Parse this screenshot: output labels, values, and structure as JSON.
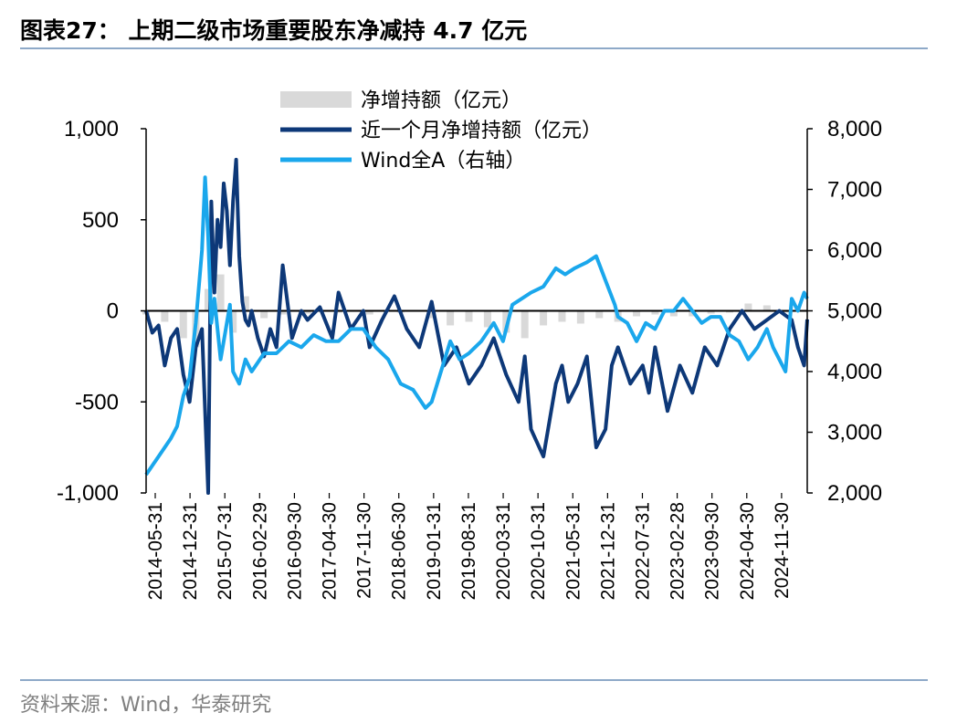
{
  "header": {
    "title": "图表27： 上期二级市场重要股东净减持 4.7 亿元"
  },
  "footer": {
    "source": "资料来源：Wind，华泰研究"
  },
  "colors": {
    "bar": "#d9d9d9",
    "monthly_line": "#0d3878",
    "index_line": "#1aa7ec",
    "rule": "#8ea9c8"
  },
  "chart_data": {
    "type": "line",
    "title": "上期二级市场重要股东净减持 4.7 亿元",
    "legend": [
      {
        "name": "净增持额（亿元）",
        "kind": "bar"
      },
      {
        "name": "近一个月净增持额（亿元）",
        "kind": "line"
      },
      {
        "name": "Wind全A（右轴）",
        "kind": "line"
      }
    ],
    "legend_position": "top-center",
    "y_left": {
      "ylim": [
        -1000,
        1000
      ],
      "ticks": [
        -1000,
        -500,
        0,
        500,
        1000
      ],
      "tick_labels": [
        "-1,000",
        "-500",
        "0",
        "500",
        "1,000"
      ]
    },
    "y_right": {
      "ylim": [
        2000,
        8000
      ],
      "ticks": [
        2000,
        3000,
        4000,
        5000,
        6000,
        7000,
        8000
      ],
      "tick_labels": [
        "2,000",
        "3,000",
        "4,000",
        "5,000",
        "6,000",
        "7,000",
        "8,000"
      ]
    },
    "x_tick_labels": [
      "2014-05-31",
      "2014-12-31",
      "2015-07-31",
      "2016-02-29",
      "2016-09-30",
      "2017-04-30",
      "2017-11-30",
      "2018-06-30",
      "2019-01-31",
      "2019-08-31",
      "2020-03-31",
      "2020-10-31",
      "2021-05-31",
      "2021-12-31",
      "2022-07-31",
      "2023-02-28",
      "2023-09-30",
      "2024-04-30",
      "2024-11-30"
    ],
    "series": [
      {
        "name": "净增持额（亿元）",
        "axis": "left",
        "type": "bar",
        "x": [
          2014.4,
          2014.7,
          2015.0,
          2015.2,
          2015.4,
          2015.6,
          2015.8,
          2016.0,
          2016.3,
          2016.6,
          2017.0,
          2017.5,
          2018.0,
          2018.5,
          2019.0,
          2019.3,
          2019.6,
          2019.9,
          2020.2,
          2020.5,
          2020.8,
          2021.1,
          2021.4,
          2021.7,
          2022.0,
          2022.3,
          2022.6,
          2022.9,
          2023.2,
          2023.5,
          2023.8,
          2024.1,
          2024.4,
          2024.7,
          2025.0
        ],
        "values": [
          -20,
          -60,
          -150,
          -200,
          120,
          200,
          -120,
          80,
          -40,
          -20,
          -15,
          -10,
          -20,
          -10,
          -40,
          -80,
          -60,
          -90,
          -120,
          -150,
          -80,
          -60,
          -70,
          -40,
          -60,
          -30,
          -20,
          -30,
          -30,
          -15,
          -10,
          40,
          30,
          -10,
          -5
        ]
      },
      {
        "name": "近一个月净增持额（亿元）",
        "axis": "left",
        "type": "line",
        "x": [
          2014.4,
          2014.5,
          2014.6,
          2014.7,
          2014.8,
          2014.9,
          2015.0,
          2015.1,
          2015.2,
          2015.3,
          2015.4,
          2015.45,
          2015.5,
          2015.55,
          2015.6,
          2015.65,
          2015.7,
          2015.75,
          2015.8,
          2015.85,
          2015.9,
          2015.95,
          2016.0,
          2016.05,
          2016.1,
          2016.2,
          2016.3,
          2016.4,
          2016.5,
          2016.6,
          2016.75,
          2016.9,
          2017.0,
          2017.2,
          2017.4,
          2017.5,
          2017.7,
          2017.9,
          2018.0,
          2018.2,
          2018.4,
          2018.6,
          2018.8,
          2019.0,
          2019.2,
          2019.4,
          2019.6,
          2019.8,
          2020.0,
          2020.2,
          2020.4,
          2020.5,
          2020.6,
          2020.8,
          2020.9,
          2021.0,
          2021.1,
          2021.2,
          2021.35,
          2021.5,
          2021.65,
          2021.8,
          2021.9,
          2022.0,
          2022.2,
          2022.4,
          2022.5,
          2022.6,
          2022.8,
          2023.0,
          2023.2,
          2023.4,
          2023.6,
          2023.8,
          2024.0,
          2024.2,
          2024.4,
          2024.6,
          2024.8,
          2024.9,
          2025.0,
          2025.05
        ],
        "values": [
          0,
          -120,
          -80,
          -300,
          -150,
          -100,
          -350,
          -500,
          -200,
          -100,
          -1000,
          600,
          100,
          500,
          350,
          700,
          550,
          250,
          600,
          830,
          300,
          50,
          -50,
          -80,
          0,
          -150,
          -250,
          -100,
          -200,
          250,
          -150,
          0,
          -50,
          20,
          -150,
          100,
          -100,
          0,
          -200,
          -50,
          80,
          -100,
          -200,
          50,
          -300,
          -200,
          -400,
          -300,
          -150,
          -350,
          -500,
          -250,
          -650,
          -800,
          -600,
          -400,
          -300,
          -500,
          -400,
          -250,
          -750,
          -650,
          -300,
          -200,
          -400,
          -300,
          -450,
          -200,
          -550,
          -300,
          -450,
          -200,
          -300,
          -100,
          0,
          -100,
          -50,
          0,
          -50,
          -200,
          -300,
          -47
        ]
      },
      {
        "name": "Wind全A（右轴）",
        "axis": "right",
        "type": "line",
        "x": [
          2014.4,
          2014.6,
          2014.8,
          2014.9,
          2015.0,
          2015.1,
          2015.2,
          2015.3,
          2015.35,
          2015.4,
          2015.45,
          2015.5,
          2015.6,
          2015.7,
          2015.75,
          2015.8,
          2015.9,
          2016.0,
          2016.1,
          2016.3,
          2016.5,
          2016.7,
          2016.9,
          2017.1,
          2017.3,
          2017.5,
          2017.7,
          2017.9,
          2018.1,
          2018.3,
          2018.5,
          2018.7,
          2018.9,
          2019.0,
          2019.15,
          2019.3,
          2019.45,
          2019.6,
          2019.8,
          2020.0,
          2020.15,
          2020.3,
          2020.45,
          2020.6,
          2020.8,
          2021.0,
          2021.15,
          2021.3,
          2021.5,
          2021.65,
          2021.8,
          2021.95,
          2022.0,
          2022.15,
          2022.3,
          2022.45,
          2022.6,
          2022.75,
          2022.9,
          2023.05,
          2023.2,
          2023.35,
          2023.5,
          2023.65,
          2023.8,
          2023.95,
          2024.1,
          2024.25,
          2024.4,
          2024.5,
          2024.6,
          2024.7,
          2024.8,
          2024.9,
          2025.0,
          2025.05
        ],
        "values": [
          2300,
          2600,
          2900,
          3100,
          3600,
          3900,
          4800,
          6000,
          7200,
          6200,
          4800,
          5200,
          4200,
          4800,
          5100,
          4000,
          3800,
          4200,
          4000,
          4300,
          4300,
          4500,
          4400,
          4600,
          4500,
          4500,
          4700,
          4700,
          4400,
          4200,
          3800,
          3700,
          3400,
          3500,
          4000,
          4500,
          4200,
          4300,
          4500,
          4800,
          4500,
          5100,
          5200,
          5300,
          5400,
          5700,
          5600,
          5700,
          5800,
          5900,
          5500,
          5100,
          4900,
          4800,
          4500,
          4800,
          4700,
          5000,
          5000,
          5200,
          5000,
          4800,
          4900,
          4900,
          4600,
          4500,
          4200,
          4400,
          4700,
          4400,
          4200,
          4000,
          5200,
          5000,
          5300,
          5200
        ]
      }
    ]
  }
}
